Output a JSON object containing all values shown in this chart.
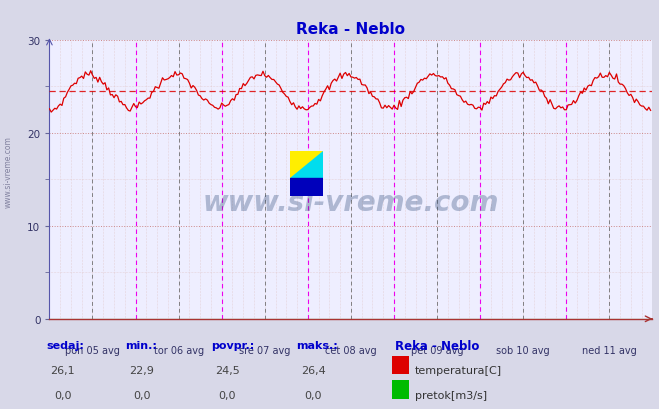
{
  "title": "Reka - Neblo",
  "title_color": "#0000cc",
  "bg_color": "#d8d8e8",
  "plot_bg_color": "#eeeeff",
  "xlabel_ticks": [
    "pon 05 avg",
    "tor 06 avg",
    "sre 07 avg",
    "čet 08 avg",
    "pet 09 avg",
    "sob 10 avg",
    "ned 11 avg"
  ],
  "yticks": [
    0,
    10,
    20,
    30
  ],
  "ylim": [
    0,
    30
  ],
  "xlim": [
    0,
    336
  ],
  "temp_avg": 24.5,
  "watermark": "www.si-vreme.com",
  "watermark_color": "#1a3a6b",
  "sidebar_text": "www.si-vreme.com",
  "sidebar_color": "#666688",
  "legend_station": "Reka - Neblo",
  "legend_temp_label": "temperatura[C]",
  "legend_flow_label": "pretok[m3/s]",
  "temp_line_color": "#dd0000",
  "flow_line_color": "#00bb00",
  "avg_line_color": "#dd0000",
  "vline_color_day": "#ee00ee",
  "vline_color_noon": "#666666",
  "grid_color_major": "#cc8888",
  "grid_color_minor": "#ddbbbb",
  "footer_label_color": "#0000cc",
  "footer_value_color": "#444444",
  "sedaj": "26,1",
  "min_val": "22,9",
  "povpr": "24,5",
  "maks": "26,4",
  "flow_val": "0,0"
}
